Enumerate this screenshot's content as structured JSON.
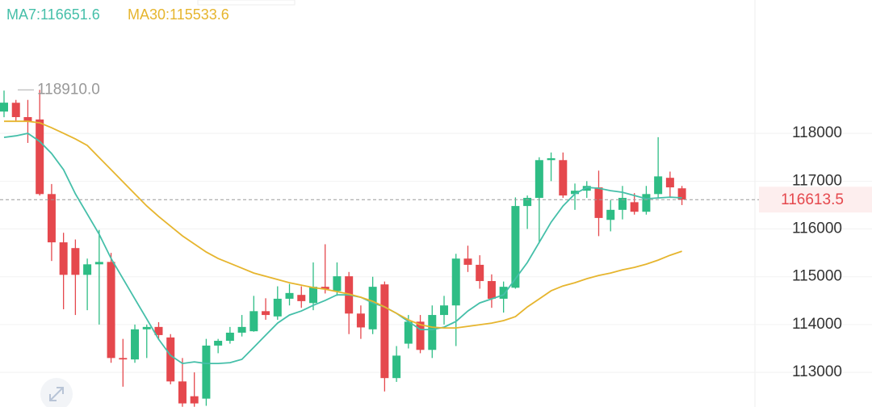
{
  "chart_data": {
    "type": "candlestick",
    "ylim": [
      112275,
      120790
    ],
    "yticks": [
      113000,
      114000,
      115000,
      116000,
      117000,
      118000
    ],
    "grid": true,
    "up_color": "#2ebd85",
    "down_color": "#e5484d",
    "open": [
      118456,
      118640,
      118340,
      118290,
      116730,
      115720,
      115600,
      115040,
      115260,
      115310,
      113300,
      113270,
      113900,
      113950,
      113730,
      112810,
      112500,
      112450,
      113560,
      113660,
      113830,
      113860,
      114280,
      114170,
      114540,
      114620,
      114450,
      114790,
      114700,
      115010,
      114230,
      113900,
      114840,
      112880,
      113600,
      114060,
      113470,
      114200,
      114400,
      115380,
      115250,
      114910,
      114540,
      114770,
      116480,
      116650,
      117440,
      117440,
      116730,
      116800,
      116870,
      116190,
      116400,
      116560,
      116360,
      116730,
      117070,
      116850
    ],
    "high": [
      118895,
      118700,
      118700,
      118910,
      116940,
      115920,
      115780,
      115380,
      115980,
      115500,
      113700,
      114000,
      114000,
      114050,
      113800,
      113300,
      113000,
      113700,
      113700,
      113950,
      114200,
      114600,
      114550,
      114800,
      114850,
      114800,
      115300,
      115680,
      115300,
      115100,
      114400,
      115000,
      114900,
      113550,
      114200,
      114200,
      114400,
      114600,
      115480,
      115650,
      115450,
      115050,
      114900,
      116660,
      116700,
      117500,
      117600,
      117600,
      116950,
      117000,
      117220,
      116600,
      116900,
      116750,
      116900,
      117920,
      117200,
      116900
    ],
    "low": [
      118338,
      118250,
      117800,
      116700,
      115330,
      114320,
      114200,
      114300,
      114000,
      113200,
      112700,
      113200,
      113300,
      113700,
      112750,
      112280,
      112280,
      112300,
      113400,
      113600,
      113750,
      113850,
      114100,
      114100,
      114400,
      114350,
      114300,
      114650,
      114600,
      113800,
      113700,
      113800,
      112600,
      112800,
      113500,
      113400,
      113300,
      114000,
      113550,
      115100,
      114750,
      114350,
      114250,
      114750,
      116000,
      115700,
      117000,
      116650,
      116400,
      116650,
      115850,
      115950,
      116200,
      116300,
      116300,
      116650,
      116650,
      116500
    ],
    "close": [
      118642,
      118340,
      118250,
      116730,
      115720,
      115040,
      115040,
      115260,
      115310,
      113300,
      113270,
      113900,
      113950,
      113780,
      112810,
      112350,
      112350,
      113560,
      113660,
      113830,
      113950,
      114280,
      114200,
      114540,
      114660,
      114490,
      114790,
      114740,
      115010,
      114230,
      113940,
      114790,
      112880,
      113350,
      114060,
      113470,
      114200,
      114400,
      115380,
      115250,
      114910,
      114540,
      114790,
      116480,
      116650,
      117440,
      117480,
      116700,
      116800,
      116900,
      116230,
      116400,
      116650,
      116360,
      116730,
      117100,
      116870,
      116613.5
    ],
    "series": [
      {
        "name": "MA7",
        "label": "MA7:116651.6",
        "color": "#45bfa9",
        "values": [
          117916,
          117949,
          118000,
          117831,
          117578,
          117240,
          116733,
          116311,
          115889,
          115382,
          114960,
          114537,
          114115,
          113693,
          113355,
          113186,
          113220,
          113186,
          113186,
          113203,
          113271,
          113524,
          113778,
          114031,
          114200,
          114284,
          114402,
          114504,
          114622,
          114622,
          114571,
          114453,
          114369,
          114234,
          114065,
          113896,
          113896,
          113946,
          114065,
          114284,
          114453,
          114537,
          114622,
          114960,
          115298,
          115720,
          116142,
          116480,
          116733,
          116868,
          116851,
          116801,
          116767,
          116699,
          116632,
          116649,
          116666,
          116651.6
        ]
      },
      {
        "name": "MA30",
        "label": "MA30:115533.6",
        "color": "#e6b52e",
        "values": [
          118253,
          118253,
          118253,
          118220,
          118118,
          118000,
          117882,
          117747,
          117493,
          117240,
          116987,
          116733,
          116480,
          116260,
          116058,
          115855,
          115686,
          115517,
          115382,
          115281,
          115179,
          115078,
          115010,
          114943,
          114875,
          114825,
          114774,
          114740,
          114690,
          114639,
          114571,
          114487,
          114369,
          114234,
          114098,
          113997,
          113946,
          113929,
          113929,
          113963,
          113997,
          114031,
          114082,
          114166,
          114369,
          114537,
          114706,
          114808,
          114875,
          114960,
          115027,
          115078,
          115146,
          115196,
          115264,
          115348,
          115450,
          115533.6
        ]
      }
    ],
    "high_marker": {
      "value": 118910,
      "label": "118910.0"
    },
    "last_price": 116613.5
  }
}
